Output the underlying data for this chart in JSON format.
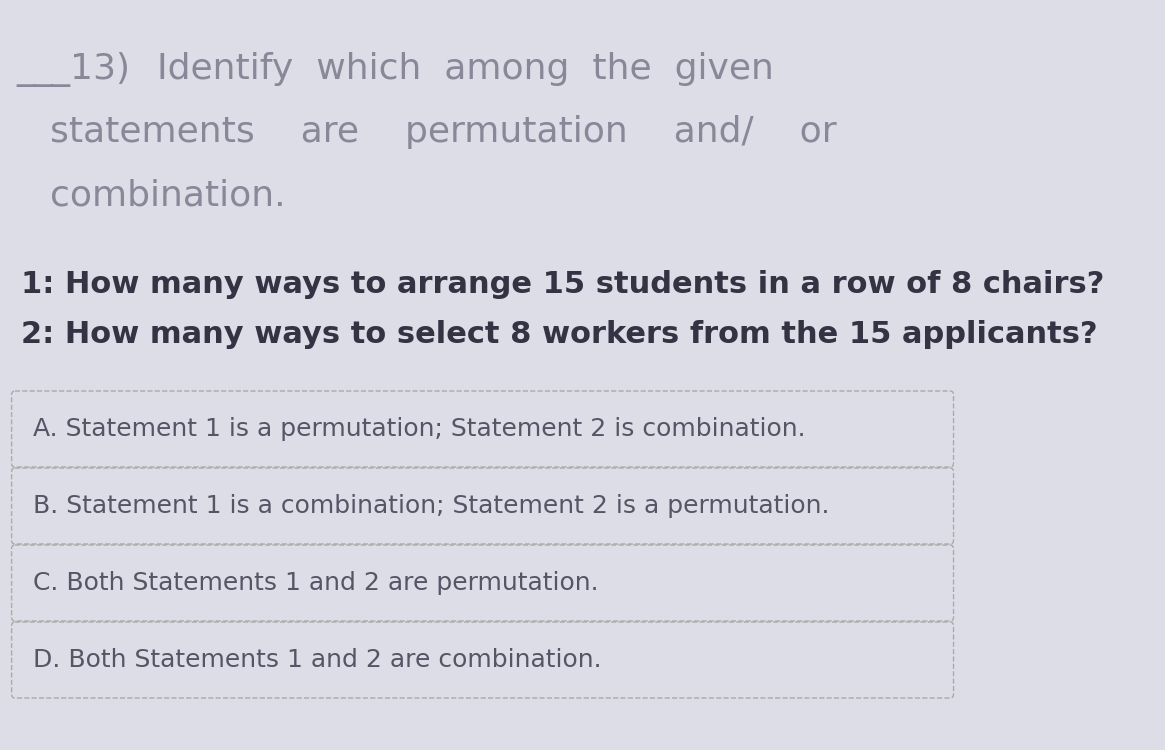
{
  "background_color": "#dddde8",
  "title_number": "___13)",
  "title_line1": "   Identify  which  among  the  given",
  "title_line2": "   statements    are    permutation    and/    or",
  "title_line3": "   combination.",
  "statement1": "1: How many ways to arrange 15 students in a row of 8 chairs?",
  "statement2": "2: How many ways to select 8 workers from the 15 applicants?",
  "options": [
    "A. Statement 1 is a permutation; Statement 2 is combination.",
    "B. Statement 1 is a combination; Statement 2 is a permutation.",
    "C. Both Statements 1 and 2 are permutation.",
    "D. Both Statements 1 and 2 are combination."
  ],
  "title_color": "#888899",
  "statement_color": "#333344",
  "option_color": "#555566",
  "box_edge_color": "#aaaaaa",
  "box_face_color": "#dddde8",
  "statement_fontsize": 22,
  "title_fontsize": 26,
  "option_fontsize": 18
}
